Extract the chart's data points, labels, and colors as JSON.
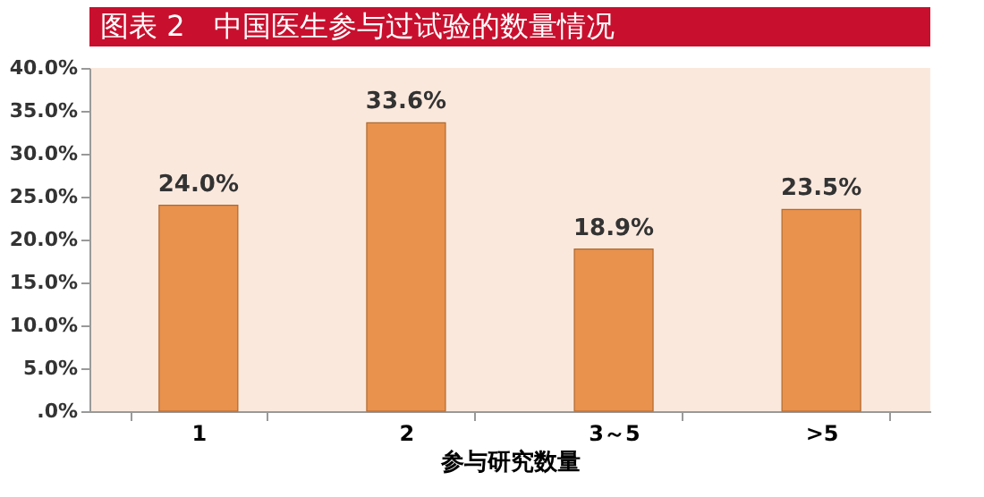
{
  "chart_data": {
    "type": "bar",
    "title": "图表 2　中国医生参与过试验的数量情况",
    "xlabel": "参与研究数量",
    "categories": [
      "1",
      "2",
      "3～5",
      ">5"
    ],
    "values": [
      24.0,
      33.6,
      18.9,
      23.5
    ],
    "color": "#e8924e",
    "value_labels": [
      "24.0%",
      "33.6%",
      "18.9%",
      "23.5%"
    ],
    "ylim": [
      0,
      40
    ],
    "yticks": [
      {
        "value": 0,
        "label": ".0%"
      },
      {
        "value": 5,
        "label": "5.0%"
      },
      {
        "value": 10,
        "label": "10.0%"
      },
      {
        "value": 15,
        "label": "15.0%"
      },
      {
        "value": 20,
        "label": "20.0%"
      },
      {
        "value": 25,
        "label": "25.0%"
      },
      {
        "value": 30,
        "label": "30.0%"
      },
      {
        "value": 35,
        "label": "35.0%"
      },
      {
        "value": 40,
        "label": "40.0%"
      }
    ],
    "grid": false
  }
}
